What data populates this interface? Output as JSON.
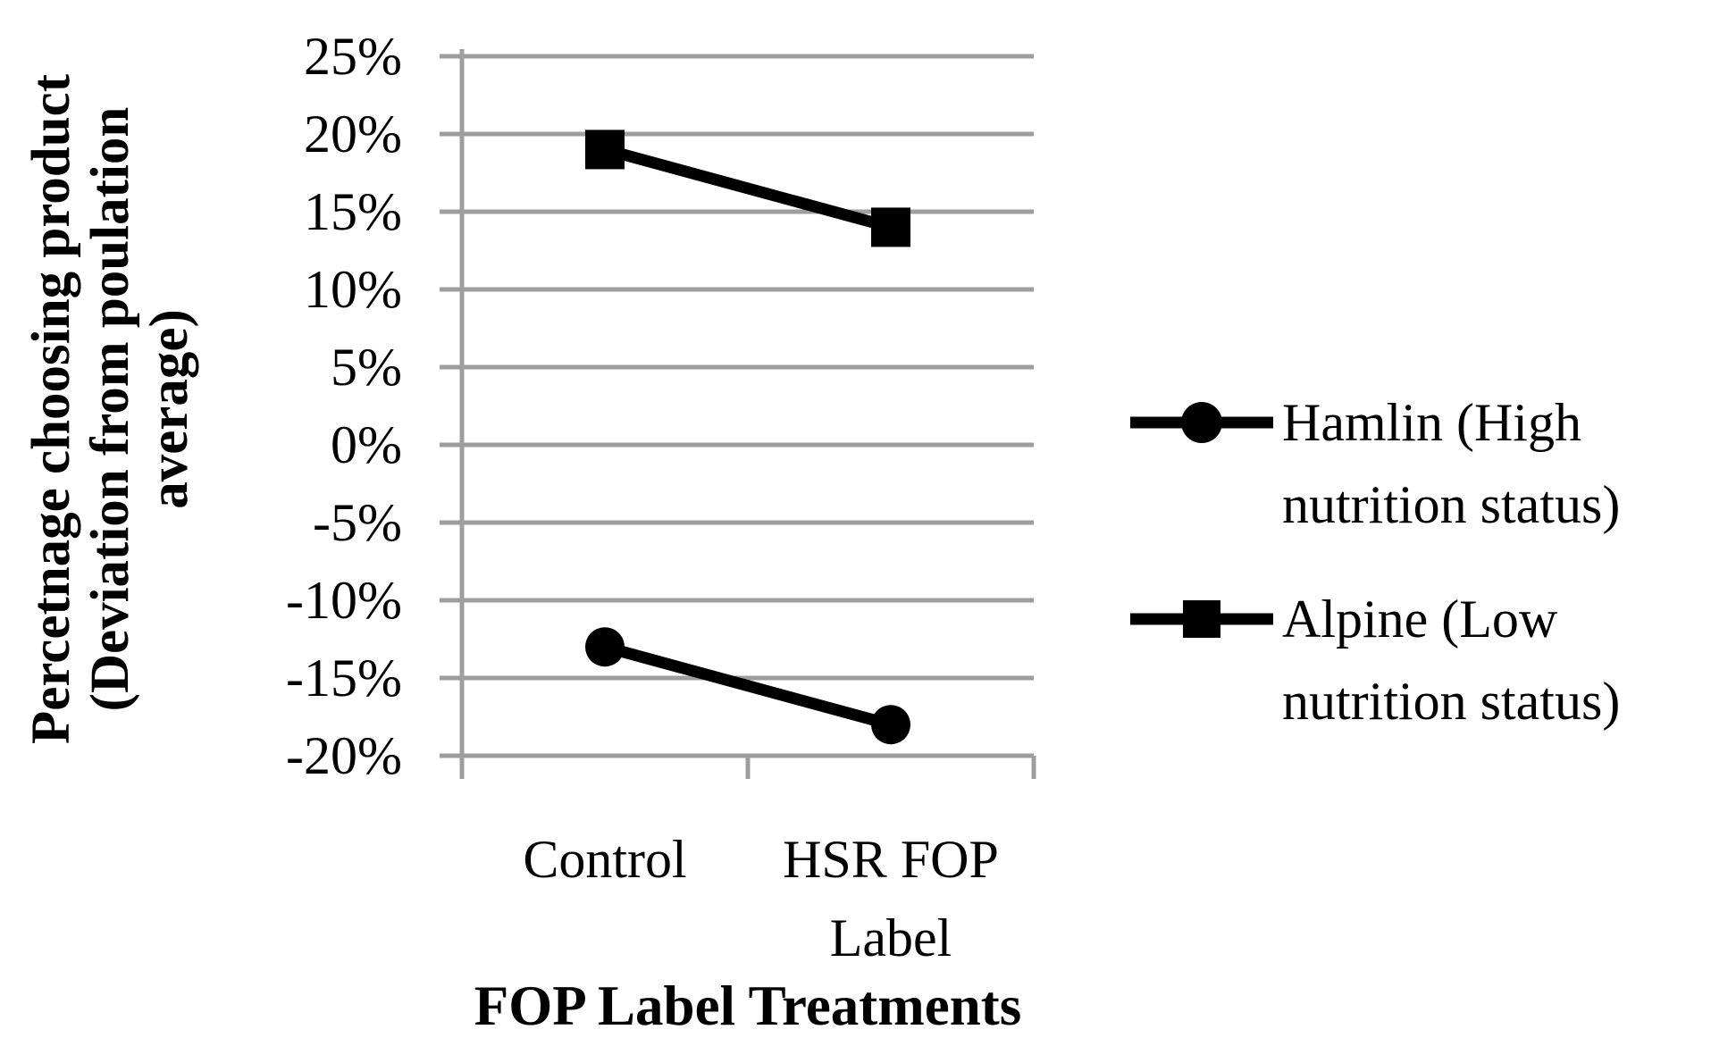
{
  "chart_data": {
    "type": "line",
    "categories": [
      "Control",
      "HSR FOP Label"
    ],
    "series": [
      {
        "name": "Hamlin (High nutrition status)",
        "marker": "circle",
        "values": [
          -13,
          -18
        ]
      },
      {
        "name": "Alpine (Low nutrition status)",
        "marker": "square",
        "values": [
          19,
          14
        ]
      }
    ],
    "xlabel": "FOP Label Treatments",
    "ylabel": "Percetnage choosing product (Deviation from poulation average)",
    "ylabel_lines": [
      "Percetnage choosing product",
      "(Deviation from poulation",
      "average)"
    ],
    "ylim": [
      -20,
      25
    ],
    "ytick_step": 5,
    "yticks": [
      25,
      20,
      15,
      10,
      5,
      0,
      -5,
      -10,
      -15,
      -20
    ],
    "ytick_labels": [
      "25%",
      "20%",
      "15%",
      "10%",
      "5%",
      "0%",
      "-5%",
      "-10%",
      "-15%",
      "-20%"
    ],
    "grid": true,
    "legend_position": "right",
    "legend": [
      {
        "label": "Hamlin (High nutrition status)",
        "marker": "circle"
      },
      {
        "label": "Alpine (Low nutrition status)",
        "marker": "square"
      }
    ],
    "colors": {
      "series": "#000000",
      "grid": "#9E9E9E",
      "text": "#000000",
      "background": "#FFFFFF"
    }
  }
}
